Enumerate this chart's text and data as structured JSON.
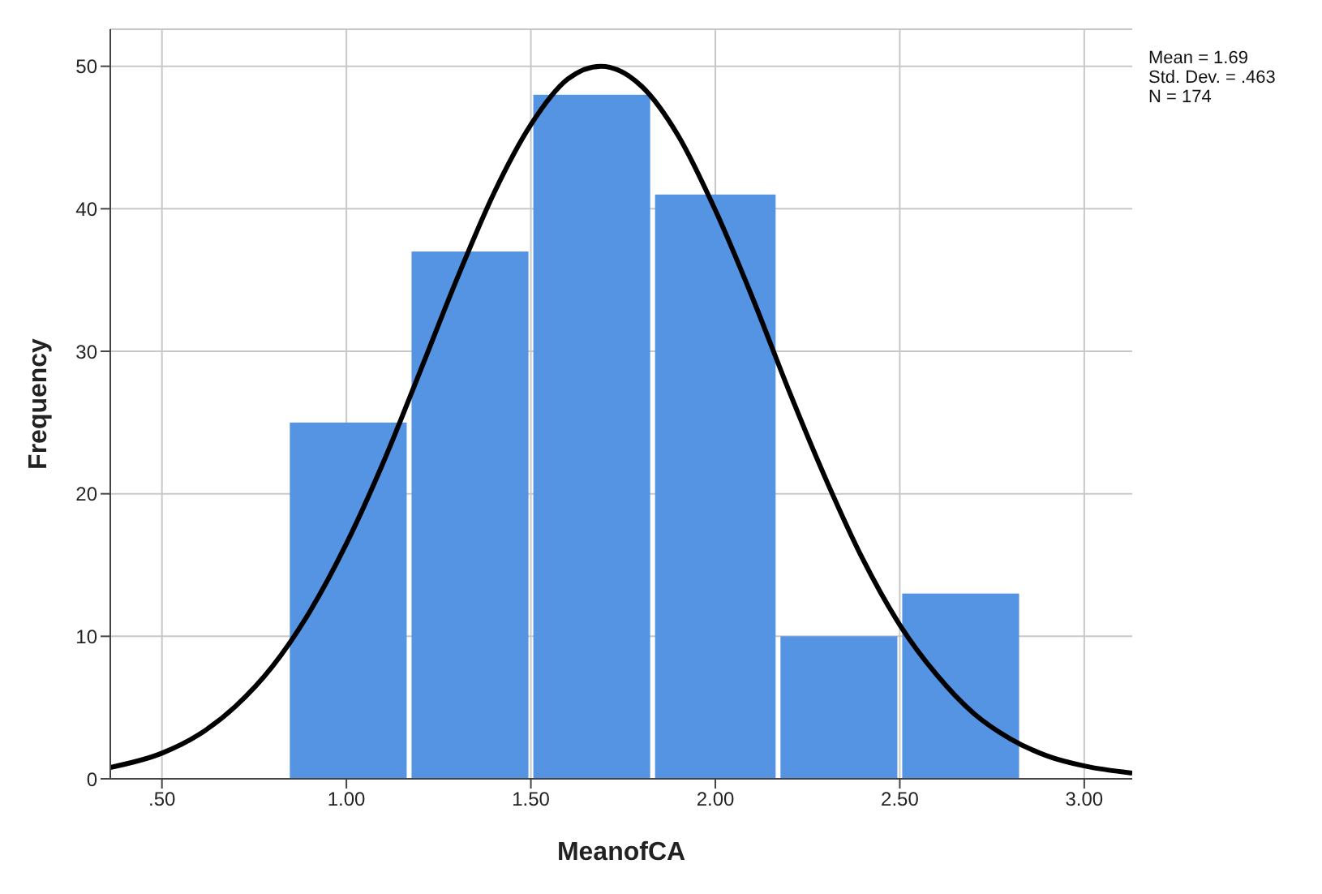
{
  "chart_data": {
    "type": "histogram",
    "xlabel": "MeanofCA",
    "ylabel": "Frequency",
    "bins": [
      0.84,
      1.17,
      1.5,
      1.83,
      2.17,
      2.5,
      2.83
    ],
    "values": [
      25,
      37,
      48,
      41,
      10,
      13
    ],
    "color": "#5594e3",
    "series": [
      {
        "type": "line",
        "color": "#000000",
        "x": [
          0.36,
          0.5,
          0.6,
          0.7,
          0.8,
          0.9,
          1.0,
          1.1,
          1.2,
          1.3,
          1.4,
          1.5,
          1.6,
          1.69,
          1.8,
          1.9,
          2.0,
          2.1,
          2.2,
          2.3,
          2.4,
          2.5,
          2.6,
          2.7,
          2.8,
          2.9,
          3.0,
          3.13
        ],
        "values": [
          0.8,
          1.8,
          3.1,
          5.1,
          7.9,
          11.7,
          16.5,
          22.2,
          28.6,
          35.1,
          41.1,
          45.9,
          49.1,
          50,
          48.6,
          45.1,
          39.9,
          33.8,
          27.2,
          21,
          15.4,
          10.8,
          7.3,
          4.6,
          2.8,
          1.6,
          0.9,
          0.4
        ]
      }
    ],
    "xlim": [
      0.36,
      3.13
    ],
    "xticks": [
      {
        "value": 0.5,
        "label": ".50"
      },
      {
        "value": 1,
        "label": "1.00"
      },
      {
        "value": 1.5,
        "label": "1.50"
      },
      {
        "value": 2,
        "label": "2.00"
      },
      {
        "value": 2.5,
        "label": "2.50"
      },
      {
        "value": 3,
        "label": "3.00"
      }
    ],
    "ylim": [
      0,
      52.6
    ],
    "yticks": [
      0,
      10,
      20,
      30,
      40,
      50
    ],
    "grid": true,
    "marker": "none",
    "annotations": [
      "Mean = 1.69",
      "Std. Dev. = .463",
      "N = 174"
    ]
  }
}
